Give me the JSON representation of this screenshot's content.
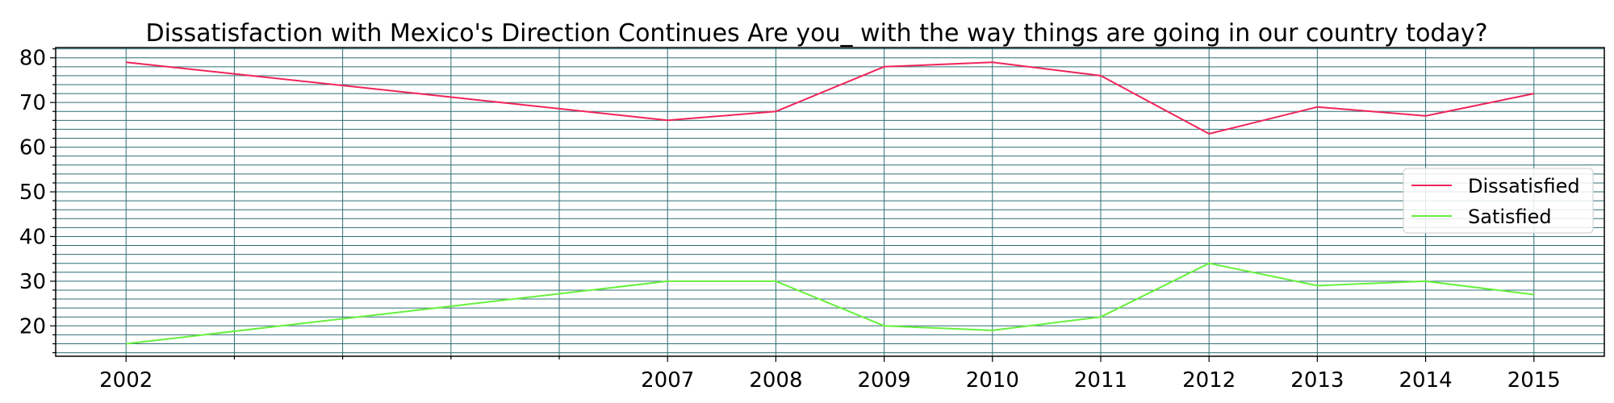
{
  "chart_data": {
    "type": "line",
    "title": "Dissatisfaction with Mexico's Direction Continues Are you_ with the way things are going in our country today?",
    "xlabel": "",
    "ylabel": "",
    "x": [
      2002,
      2007,
      2008,
      2009,
      2010,
      2011,
      2012,
      2013,
      2014,
      2015
    ],
    "xlim": [
      2001.35,
      2015.65
    ],
    "ylim": [
      13.2,
      82.3
    ],
    "yticks": [
      20,
      30,
      40,
      50,
      60,
      70,
      80
    ],
    "series": [
      {
        "name": "Dissatisfied",
        "color": "#f0245a",
        "values": [
          79,
          66,
          68,
          78,
          79,
          76,
          63,
          69,
          67,
          72
        ]
      },
      {
        "name": "Satisfied",
        "color": "#66f03c",
        "values": [
          16,
          30,
          30,
          20,
          19,
          22,
          34,
          29,
          30,
          27
        ]
      }
    ],
    "grid": true,
    "grid_color": "#2f6f73",
    "legend_position": "right"
  }
}
